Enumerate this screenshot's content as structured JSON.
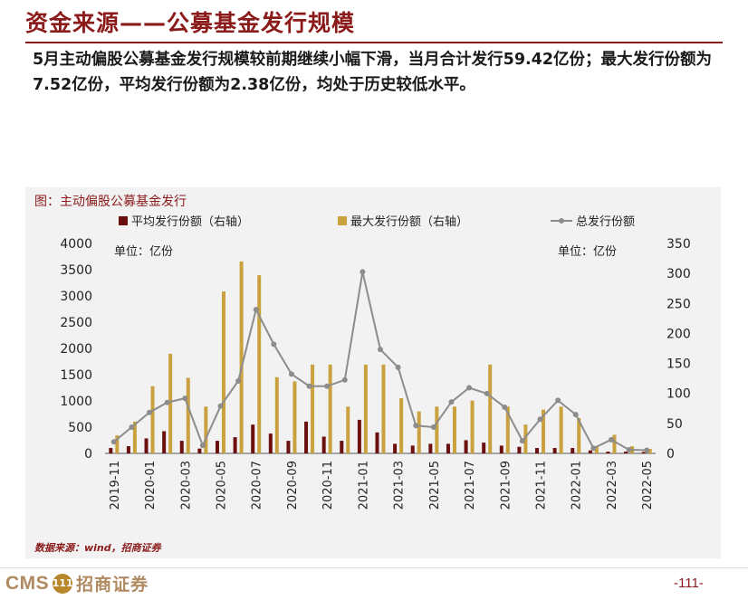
{
  "header": {
    "title": "资金来源——公募基金发行规模"
  },
  "summary": {
    "text": "5月主动偏股公募基金发行规模较前期继续小幅下滑，当月合计发行59.42亿份；最大发行份额为7.52亿份，平均发行份额为2.38亿份，均处于历史较低水平。"
  },
  "source": {
    "text": "数据来源：wind，招商证券"
  },
  "footer": {
    "logo_cms": "CMS",
    "logo_badge": "111",
    "logo_cn": "招商证券",
    "page_number": "-111-"
  },
  "chart_data": {
    "type": "bar+line",
    "title": "图：主动偏股公募基金发行",
    "left_unit": "单位：亿份",
    "right_unit": "单位：亿份",
    "months": [
      "2019-11",
      "2019-12",
      "2020-01",
      "2020-02",
      "2020-03",
      "2020-04",
      "2020-05",
      "2020-06",
      "2020-07",
      "2020-08",
      "2020-09",
      "2020-10",
      "2020-11",
      "2020-12",
      "2021-01",
      "2021-02",
      "2021-03",
      "2021-04",
      "2021-05",
      "2021-06",
      "2021-07",
      "2021-08",
      "2021-09",
      "2021-10",
      "2021-11",
      "2021-12",
      "2022-01",
      "2022-02",
      "2022-03",
      "2022-04",
      "2022-05"
    ],
    "x_tick_labels": [
      "2019-11",
      "2020-01",
      "2020-03",
      "2020-05",
      "2020-07",
      "2020-09",
      "2020-11",
      "2021-01",
      "2021-03",
      "2021-05",
      "2021-07",
      "2021-09",
      "2021-11",
      "2022-01",
      "2022-03",
      "2022-05"
    ],
    "left_axis": {
      "min": 0,
      "max": 4000,
      "ticks": [
        0,
        500,
        1000,
        1500,
        2000,
        2500,
        3000,
        3500,
        4000
      ]
    },
    "right_axis": {
      "min": 0,
      "max": 350,
      "ticks": [
        0,
        50,
        100,
        150,
        200,
        250,
        300,
        350
      ]
    },
    "series": [
      {
        "name": "平均发行份额（右轴）",
        "type": "bar",
        "axis": "right",
        "color": "#6b0f0f",
        "values": [
          9,
          12,
          25,
          37,
          21,
          8,
          21,
          27,
          48,
          33,
          21,
          53,
          28,
          21,
          56,
          35,
          16,
          13,
          16,
          16,
          22,
          18,
          13,
          11,
          9,
          9,
          9,
          5,
          3,
          3,
          2.38
        ]
      },
      {
        "name": "最大发行份额（右轴）",
        "type": "bar",
        "axis": "right",
        "color": "#c9a13e",
        "values": [
          30,
          53,
          112,
          166,
          126,
          78,
          270,
          320,
          297,
          127,
          120,
          148,
          148,
          78,
          148,
          148,
          92,
          70,
          78,
          78,
          88,
          148,
          78,
          48,
          73,
          78,
          59,
          12,
          31,
          12,
          7.52
        ]
      },
      {
        "name": "总发行份额",
        "type": "line",
        "axis": "left",
        "color": "#8c8c8c",
        "values": [
          220,
          500,
          780,
          970,
          1050,
          150,
          900,
          1380,
          2740,
          2080,
          1510,
          1280,
          1280,
          1400,
          3460,
          1980,
          1640,
          530,
          500,
          980,
          1250,
          1140,
          880,
          240,
          650,
          1010,
          740,
          100,
          260,
          70,
          59.42
        ]
      }
    ]
  }
}
